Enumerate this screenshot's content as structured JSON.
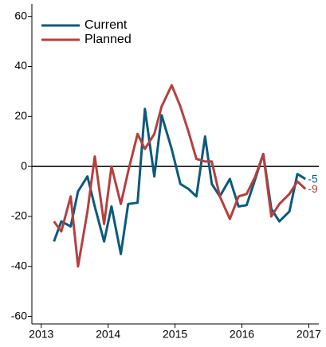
{
  "chart_data": {
    "type": "line",
    "x": [
      2013.19,
      2013.3,
      2013.44,
      2013.55,
      2013.69,
      2013.8,
      2013.94,
      2014.05,
      2014.19,
      2014.3,
      2014.44,
      2014.55,
      2014.69,
      2014.8,
      2014.95,
      2015.08,
      2015.2,
      2015.32,
      2015.45,
      2015.55,
      2015.67,
      2015.82,
      2015.95,
      2016.07,
      2016.2,
      2016.32,
      2016.44,
      2016.56,
      2016.71,
      2016.83,
      2016.95
    ],
    "series": [
      {
        "name": "Current",
        "color": "#0b5a7c",
        "values": [
          -30,
          -22,
          -24,
          -10,
          -4,
          -16,
          -30,
          -16,
          -35,
          -15,
          -14.5,
          23,
          -4,
          20.5,
          7,
          -7,
          -9,
          -12,
          12,
          -7,
          -12,
          -5,
          -16,
          -15.5,
          -5,
          5,
          -17,
          -22,
          -18,
          -3,
          -5
        ]
      },
      {
        "name": "Planned",
        "color": "#b5403f",
        "values": [
          -22,
          -26,
          -12,
          -40,
          -18,
          4,
          -23,
          0,
          -15,
          -2,
          13,
          7,
          13,
          24,
          32.5,
          24,
          14,
          3,
          2,
          2,
          -12,
          -21,
          -12,
          -11,
          -4,
          5,
          -20,
          -15,
          -11,
          -6,
          -9
        ]
      }
    ],
    "xlim": [
      2012.86,
      2017.15
    ],
    "xticks": [
      2013,
      2014,
      2015,
      2016,
      2017
    ],
    "ylim": [
      -63,
      65
    ],
    "yticks": [
      -60,
      -40,
      -20,
      0,
      20,
      40,
      60
    ],
    "zero_line": true,
    "legend": "upper left"
  }
}
